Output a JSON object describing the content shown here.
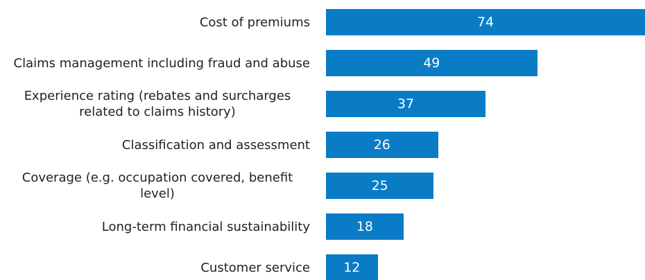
{
  "chart_data": {
    "type": "bar",
    "orientation": "horizontal",
    "categories": [
      "Cost of premiums",
      "Claims management including fraud and abuse",
      "Experience rating (rebates and surcharges related to claims history)",
      "Classification and assessment",
      "Coverage (e.g. occupation covered, benefit level)",
      "Long-term financial sustainability",
      "Customer service"
    ],
    "values": [
      74,
      49,
      37,
      26,
      25,
      18,
      12
    ],
    "color": "#0a7cc6"
  }
}
